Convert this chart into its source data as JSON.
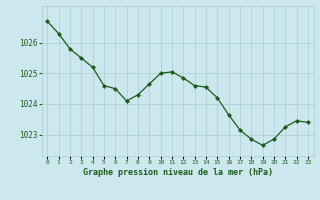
{
  "x": [
    0,
    1,
    2,
    3,
    4,
    5,
    6,
    7,
    8,
    9,
    10,
    11,
    12,
    13,
    14,
    15,
    16,
    17,
    18,
    19,
    20,
    21,
    22,
    23
  ],
  "y": [
    1026.7,
    1026.3,
    1025.8,
    1025.5,
    1025.2,
    1024.6,
    1024.5,
    1024.1,
    1024.3,
    1024.65,
    1025.0,
    1025.05,
    1024.85,
    1024.6,
    1024.55,
    1024.2,
    1023.65,
    1023.15,
    1022.85,
    1022.65,
    1022.85,
    1023.25,
    1023.45,
    1023.4
  ],
  "line_color": "#1a5c1a",
  "marker_color": "#1a5c1a",
  "bg_color": "#cce8ee",
  "grid_color": "#aacdd6",
  "title": "Graphe pression niveau de la mer (hPa)",
  "title_color": "#1a5c1a",
  "tick_color": "#1a5c1a",
  "yticks": [
    1023,
    1024,
    1025,
    1026
  ],
  "xtick_labels": [
    "0",
    "1",
    "2",
    "3",
    "4",
    "5",
    "6",
    "7",
    "8",
    "9",
    "10",
    "11",
    "12",
    "13",
    "14",
    "15",
    "16",
    "17",
    "18",
    "19",
    "20",
    "21",
    "22",
    "23"
  ],
  "ylim": [
    1022.3,
    1027.2
  ],
  "xlim": [
    -0.5,
    23.5
  ]
}
